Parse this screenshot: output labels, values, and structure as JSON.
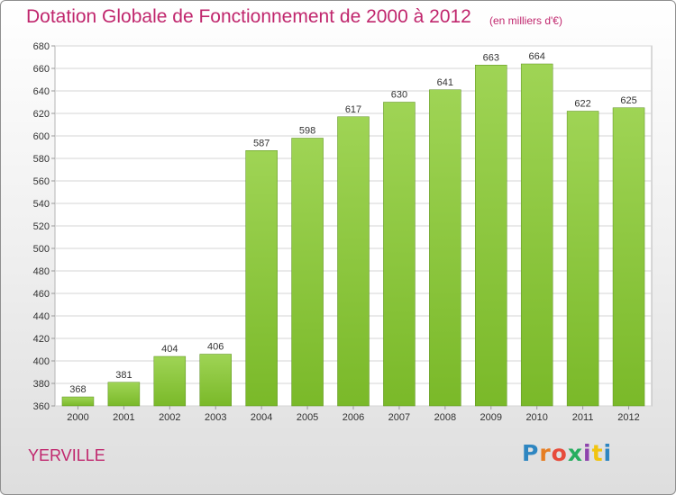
{
  "title": "Dotation Globale de Fonctionnement de 2000 à 2012",
  "unit": "(en milliers d'€)",
  "commune": "YERVILLE",
  "logo": {
    "text": "Proxiti",
    "colors": [
      "#2e86c1",
      "#e67e22",
      "#e74c3c",
      "#27ae60",
      "#8e44ad",
      "#f1c40f",
      "#2e86c1"
    ]
  },
  "chart_data": {
    "type": "bar",
    "categories": [
      "2000",
      "2001",
      "2002",
      "2003",
      "2004",
      "2005",
      "2006",
      "2007",
      "2008",
      "2009",
      "2010",
      "2011",
      "2012"
    ],
    "values": [
      368,
      381,
      404,
      406,
      587,
      598,
      617,
      630,
      641,
      663,
      664,
      622,
      625
    ],
    "ylim": [
      360,
      680
    ],
    "yticks": [
      360,
      380,
      400,
      420,
      440,
      460,
      480,
      500,
      520,
      540,
      560,
      580,
      600,
      620,
      640,
      660,
      680
    ],
    "grid": true,
    "bar_color": "#7ab929",
    "bar_color_light": "#9fd455"
  }
}
